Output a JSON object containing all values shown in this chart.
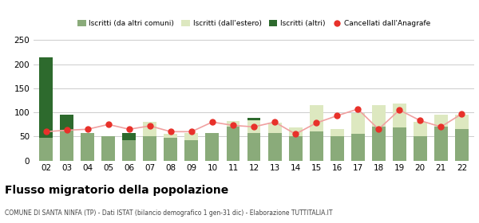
{
  "years": [
    "02",
    "03",
    "04",
    "05",
    "06",
    "07",
    "08",
    "09",
    "10",
    "11",
    "12",
    "13",
    "14",
    "15",
    "16",
    "17",
    "18",
    "19",
    "20",
    "21",
    "22"
  ],
  "iscritti_altri_comuni": [
    47,
    63,
    57,
    50,
    43,
    50,
    47,
    42,
    57,
    70,
    57,
    58,
    50,
    60,
    50,
    55,
    70,
    68,
    50,
    70,
    65
  ],
  "iscritti_estero": [
    0,
    0,
    0,
    0,
    0,
    30,
    8,
    15,
    0,
    12,
    27,
    20,
    18,
    55,
    15,
    43,
    45,
    50,
    30,
    25,
    30
  ],
  "iscritti_altri": [
    168,
    33,
    0,
    0,
    15,
    0,
    0,
    0,
    0,
    0,
    5,
    0,
    0,
    0,
    0,
    0,
    0,
    0,
    0,
    0,
    0
  ],
  "cancellati": [
    60,
    63,
    65,
    75,
    65,
    72,
    60,
    60,
    80,
    73,
    70,
    80,
    55,
    78,
    93,
    107,
    65,
    105,
    83,
    70,
    97
  ],
  "color_comuni": "#8aab7a",
  "color_estero": "#dde8c0",
  "color_altri": "#2d6a2d",
  "color_cancel": "#e8312a",
  "color_cancel_line": "#f0a0a0",
  "ylim": [
    0,
    250
  ],
  "yticks": [
    0,
    50,
    100,
    150,
    200,
    250
  ],
  "title": "Flusso migratorio della popolazione",
  "subtitle": "COMUNE DI SANTA NINFA (TP) - Dati ISTAT (bilancio demografico 1 gen-31 dic) - Elaborazione TUTTITALIA.IT",
  "legend_labels": [
    "Iscritti (da altri comuni)",
    "Iscritti (dall'estero)",
    "Iscritti (altri)",
    "Cancellati dall'Anagrafe"
  ],
  "bg_color": "#ffffff",
  "grid_color": "#cccccc"
}
